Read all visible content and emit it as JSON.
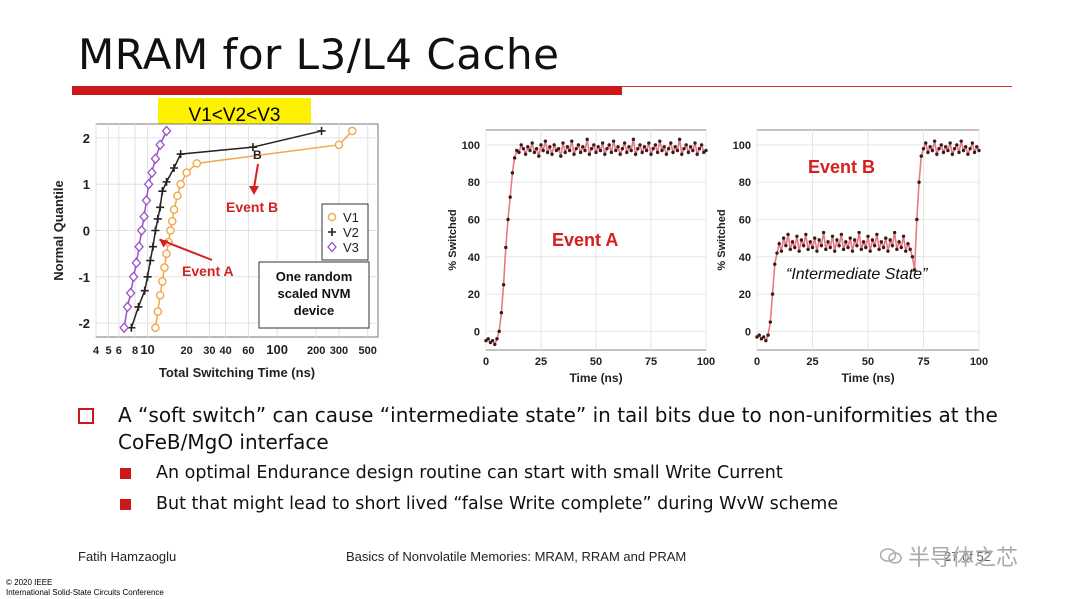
{
  "slide": {
    "title": "MRAM for L3/L4 Cache",
    "condition_badge": "V1<V2<V3",
    "bullets": [
      {
        "text": "A “soft switch” can cause “intermediate state” in tail bits due to non-uniformities at the CoFeB/MgO interface",
        "sub": [
          "An optimal Endurance design routine can start with small Write Current",
          "But that might lead to short lived “false Write complete” during WvW scheme"
        ]
      }
    ],
    "footer": {
      "author": "Fatih Hamzaoglu",
      "course": "Basics of Nonvolatile Memories: MRAM, RRAM and PRAM",
      "page": "27 of 52",
      "copyright": "© 2020 IEEE",
      "conference": "International Solid-State Circuits Conference"
    },
    "watermark": "半导体之芯"
  },
  "colors": {
    "accent_red": "#cc1818",
    "badge_yellow": "#fff200",
    "v1_orange": "#f0a94a",
    "v2_black": "#222222",
    "v3_purple": "#9a52c8",
    "trace_pink": "#e87a86",
    "annot_red": "#d42020"
  },
  "chart_data": [
    {
      "type": "scatter",
      "xlabel": "Total Switching Time (ns)",
      "ylabel": "Normal Quantile",
      "x_scale": "log",
      "xlim": [
        4,
        600
      ],
      "ylim": [
        -2.3,
        2.3
      ],
      "x_ticks": [
        4,
        5,
        6,
        8,
        10,
        20,
        30,
        40,
        60,
        100,
        200,
        300,
        500
      ],
      "x_tick_labels": [
        "4",
        "5",
        "6",
        "8",
        "10",
        "20",
        "30",
        "40",
        "60",
        "100",
        "200",
        "300",
        "500"
      ],
      "y_ticks": [
        -2,
        -1,
        0,
        1,
        2
      ],
      "y_tick_labels": [
        "-2",
        "-1",
        "0",
        "1",
        "2"
      ],
      "grid": true,
      "legend_position": "right",
      "legend_entries": [
        "V1",
        "V2",
        "V3"
      ],
      "series": [
        {
          "name": "V1",
          "marker": "circle",
          "points": [
            [
              11.5,
              -2.1
            ],
            [
              12,
              -1.75
            ],
            [
              12.5,
              -1.4
            ],
            [
              13,
              -1.1
            ],
            [
              13.5,
              -0.8
            ],
            [
              14,
              -0.5
            ],
            [
              14.5,
              -0.25
            ],
            [
              15,
              0.0
            ],
            [
              15.5,
              0.2
            ],
            [
              16,
              0.45
            ],
            [
              17,
              0.75
            ],
            [
              18,
              1.0
            ],
            [
              20,
              1.25
            ],
            [
              24,
              1.45
            ],
            [
              300,
              1.85
            ],
            [
              380,
              2.15
            ]
          ]
        },
        {
          "name": "V2",
          "marker": "plus",
          "points": [
            [
              7.5,
              -2.1
            ],
            [
              8.5,
              -1.65
            ],
            [
              9.5,
              -1.3
            ],
            [
              10,
              -1.0
            ],
            [
              10.5,
              -0.65
            ],
            [
              11,
              -0.35
            ],
            [
              11.5,
              0.0
            ],
            [
              12,
              0.25
            ],
            [
              12.5,
              0.5
            ],
            [
              13,
              0.85
            ],
            [
              14,
              1.05
            ],
            [
              16,
              1.35
            ],
            [
              18,
              1.65
            ],
            [
              65,
              1.8
            ],
            [
              220,
              2.15
            ]
          ]
        },
        {
          "name": "V3",
          "marker": "diamond",
          "points": [
            [
              6.6,
              -2.1
            ],
            [
              7,
              -1.65
            ],
            [
              7.4,
              -1.35
            ],
            [
              7.8,
              -1.0
            ],
            [
              8.2,
              -0.7
            ],
            [
              8.6,
              -0.35
            ],
            [
              9,
              0.0
            ],
            [
              9.4,
              0.3
            ],
            [
              9.8,
              0.65
            ],
            [
              10.2,
              1.0
            ],
            [
              10.8,
              1.25
            ],
            [
              11.5,
              1.55
            ],
            [
              12.5,
              1.85
            ],
            [
              14,
              2.15
            ]
          ]
        }
      ],
      "annotations": [
        {
          "text": "Event A",
          "point": [
            11.5,
            -0.15
          ]
        },
        {
          "text": "Event B",
          "point": [
            65,
            1.75
          ]
        }
      ],
      "note_box": "One random scaled NVM device"
    },
    {
      "type": "line",
      "xlabel": "Time (ns)",
      "ylabel": "% Switched",
      "xlim": [
        0,
        100
      ],
      "ylim": [
        -10,
        108
      ],
      "x_ticks": [
        0,
        25,
        50,
        75,
        100
      ],
      "y_ticks": [
        0,
        20,
        40,
        60,
        80,
        100
      ],
      "grid": true,
      "annotation": "Event A",
      "points": [
        [
          0,
          -5
        ],
        [
          1,
          -4
        ],
        [
          2,
          -6
        ],
        [
          3,
          -5
        ],
        [
          4,
          -7
        ],
        [
          5,
          -4
        ],
        [
          6,
          0
        ],
        [
          7,
          10
        ],
        [
          8,
          25
        ],
        [
          9,
          45
        ],
        [
          10,
          60
        ],
        [
          11,
          72
        ],
        [
          12,
          85
        ],
        [
          13,
          93
        ],
        [
          14,
          97
        ],
        [
          15,
          96
        ],
        [
          16,
          100
        ],
        [
          17,
          98
        ],
        [
          18,
          95
        ],
        [
          19,
          99
        ],
        [
          20,
          97
        ],
        [
          21,
          101
        ],
        [
          22,
          96
        ],
        [
          23,
          98
        ],
        [
          24,
          94
        ],
        [
          25,
          100
        ],
        [
          26,
          97
        ],
        [
          27,
          102
        ],
        [
          28,
          96
        ],
        [
          29,
          99
        ],
        [
          30,
          95
        ],
        [
          31,
          100
        ],
        [
          32,
          97
        ],
        [
          33,
          98
        ],
        [
          34,
          94
        ],
        [
          35,
          101
        ],
        [
          36,
          96
        ],
        [
          37,
          99
        ],
        [
          38,
          97
        ],
        [
          39,
          102
        ],
        [
          40,
          95
        ],
        [
          41,
          98
        ],
        [
          42,
          100
        ],
        [
          43,
          96
        ],
        [
          44,
          99
        ],
        [
          45,
          97
        ],
        [
          46,
          103
        ],
        [
          47,
          95
        ],
        [
          48,
          98
        ],
        [
          49,
          100
        ],
        [
          50,
          96
        ],
        [
          51,
          99
        ],
        [
          52,
          97
        ],
        [
          53,
          101
        ],
        [
          54,
          95
        ],
        [
          55,
          98
        ],
        [
          56,
          100
        ],
        [
          57,
          96
        ],
        [
          58,
          102
        ],
        [
          59,
          97
        ],
        [
          60,
          99
        ],
        [
          61,
          95
        ],
        [
          62,
          98
        ],
        [
          63,
          101
        ],
        [
          64,
          96
        ],
        [
          65,
          99
        ],
        [
          66,
          97
        ],
        [
          67,
          103
        ],
        [
          68,
          95
        ],
        [
          69,
          98
        ],
        [
          70,
          100
        ],
        [
          71,
          96
        ],
        [
          72,
          99
        ],
        [
          73,
          97
        ],
        [
          74,
          101
        ],
        [
          75,
          95
        ],
        [
          76,
          98
        ],
        [
          77,
          100
        ],
        [
          78,
          96
        ],
        [
          79,
          102
        ],
        [
          80,
          97
        ],
        [
          81,
          99
        ],
        [
          82,
          95
        ],
        [
          83,
          98
        ],
        [
          84,
          101
        ],
        [
          85,
          96
        ],
        [
          86,
          99
        ],
        [
          87,
          97
        ],
        [
          88,
          103
        ],
        [
          89,
          95
        ],
        [
          90,
          98
        ],
        [
          91,
          100
        ],
        [
          92,
          96
        ],
        [
          93,
          99
        ],
        [
          94,
          97
        ],
        [
          95,
          101
        ],
        [
          96,
          95
        ],
        [
          97,
          98
        ],
        [
          98,
          100
        ],
        [
          99,
          96
        ],
        [
          100,
          97
        ]
      ]
    },
    {
      "type": "line",
      "xlabel": "Time (ns)",
      "ylabel": "% Switched",
      "xlim": [
        0,
        100
      ],
      "ylim": [
        -10,
        108
      ],
      "x_ticks": [
        0,
        25,
        50,
        75,
        100
      ],
      "y_ticks": [
        0,
        20,
        40,
        60,
        80,
        100
      ],
      "grid": true,
      "annotations": [
        "Event B",
        "“Intermediate State”"
      ],
      "points": [
        [
          0,
          -3
        ],
        [
          1,
          -2
        ],
        [
          2,
          -4
        ],
        [
          3,
          -3
        ],
        [
          4,
          -5
        ],
        [
          5,
          -2
        ],
        [
          6,
          5
        ],
        [
          7,
          20
        ],
        [
          8,
          36
        ],
        [
          9,
          42
        ],
        [
          10,
          47
        ],
        [
          11,
          43
        ],
        [
          12,
          50
        ],
        [
          13,
          46
        ],
        [
          14,
          52
        ],
        [
          15,
          44
        ],
        [
          16,
          48
        ],
        [
          17,
          45
        ],
        [
          18,
          51
        ],
        [
          19,
          43
        ],
        [
          20,
          49
        ],
        [
          21,
          46
        ],
        [
          22,
          52
        ],
        [
          23,
          44
        ],
        [
          24,
          48
        ],
        [
          25,
          45
        ],
        [
          26,
          50
        ],
        [
          27,
          43
        ],
        [
          28,
          49
        ],
        [
          29,
          46
        ],
        [
          30,
          53
        ],
        [
          31,
          44
        ],
        [
          32,
          48
        ],
        [
          33,
          45
        ],
        [
          34,
          51
        ],
        [
          35,
          43
        ],
        [
          36,
          49
        ],
        [
          37,
          46
        ],
        [
          38,
          52
        ],
        [
          39,
          44
        ],
        [
          40,
          48
        ],
        [
          41,
          45
        ],
        [
          42,
          50
        ],
        [
          43,
          43
        ],
        [
          44,
          49
        ],
        [
          45,
          46
        ],
        [
          46,
          53
        ],
        [
          47,
          44
        ],
        [
          48,
          48
        ],
        [
          49,
          45
        ],
        [
          50,
          51
        ],
        [
          51,
          43
        ],
        [
          52,
          49
        ],
        [
          53,
          46
        ],
        [
          54,
          52
        ],
        [
          55,
          44
        ],
        [
          56,
          48
        ],
        [
          57,
          45
        ],
        [
          58,
          50
        ],
        [
          59,
          43
        ],
        [
          60,
          49
        ],
        [
          61,
          46
        ],
        [
          62,
          53
        ],
        [
          63,
          44
        ],
        [
          64,
          48
        ],
        [
          65,
          45
        ],
        [
          66,
          51
        ],
        [
          67,
          43
        ],
        [
          68,
          47
        ],
        [
          69,
          44
        ],
        [
          70,
          40
        ],
        [
          71,
          33
        ],
        [
          72,
          60
        ],
        [
          73,
          80
        ],
        [
          74,
          94
        ],
        [
          75,
          98
        ],
        [
          76,
          101
        ],
        [
          77,
          96
        ],
        [
          78,
          99
        ],
        [
          79,
          97
        ],
        [
          80,
          102
        ],
        [
          81,
          95
        ],
        [
          82,
          98
        ],
        [
          83,
          100
        ],
        [
          84,
          96
        ],
        [
          85,
          99
        ],
        [
          86,
          97
        ],
        [
          87,
          101
        ],
        [
          88,
          95
        ],
        [
          89,
          98
        ],
        [
          90,
          100
        ],
        [
          91,
          96
        ],
        [
          92,
          102
        ],
        [
          93,
          97
        ],
        [
          94,
          99
        ],
        [
          95,
          95
        ],
        [
          96,
          98
        ],
        [
          97,
          101
        ],
        [
          98,
          96
        ],
        [
          99,
          99
        ],
        [
          100,
          97
        ]
      ]
    }
  ]
}
